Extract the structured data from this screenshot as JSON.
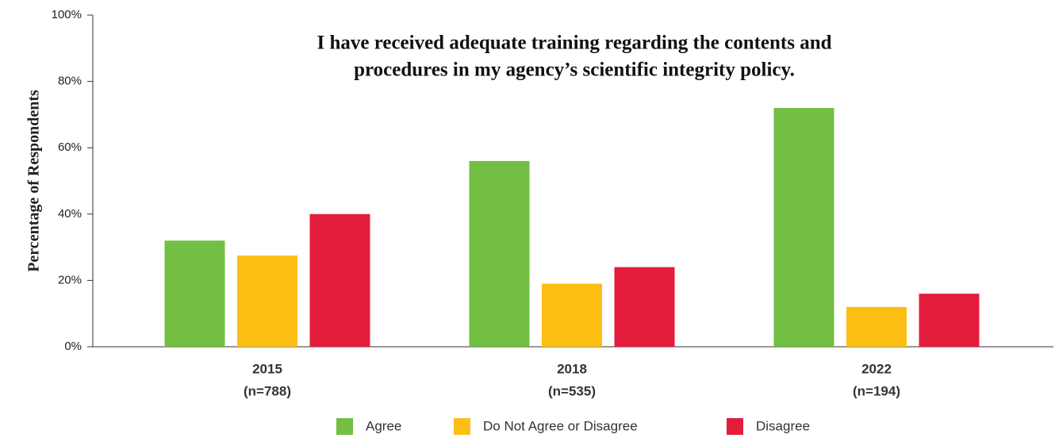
{
  "chart_data": {
    "type": "bar",
    "title": [
      "I have received adequate training regarding the contents and",
      "procedures in my agency’s scientific integrity policy."
    ],
    "y_label": "Percentage of Respondents",
    "categories": [
      "2015",
      "2018",
      "2022"
    ],
    "sample_sizes": [
      "(n=788)",
      "(n=535)",
      "(n=194)"
    ],
    "series": [
      {
        "name": "Agree",
        "color": "#72bf44",
        "values": [
          32,
          56,
          72
        ]
      },
      {
        "name": "Do Not Agree or Disagree",
        "color": "#fdbe14",
        "values": [
          27.5,
          19,
          12
        ]
      },
      {
        "name": "Disagree",
        "color": "#e41d3c",
        "values": [
          40,
          24,
          16
        ]
      }
    ],
    "ylim": [
      0,
      100
    ],
    "yticks": [
      {
        "value": 0,
        "label": "0%"
      },
      {
        "value": 20,
        "label": "20%"
      },
      {
        "value": 40,
        "label": "40%"
      },
      {
        "value": 60,
        "label": "60%"
      },
      {
        "value": 80,
        "label": "80%"
      },
      {
        "value": 100,
        "label": "100%"
      }
    ],
    "legend": "bottom"
  }
}
